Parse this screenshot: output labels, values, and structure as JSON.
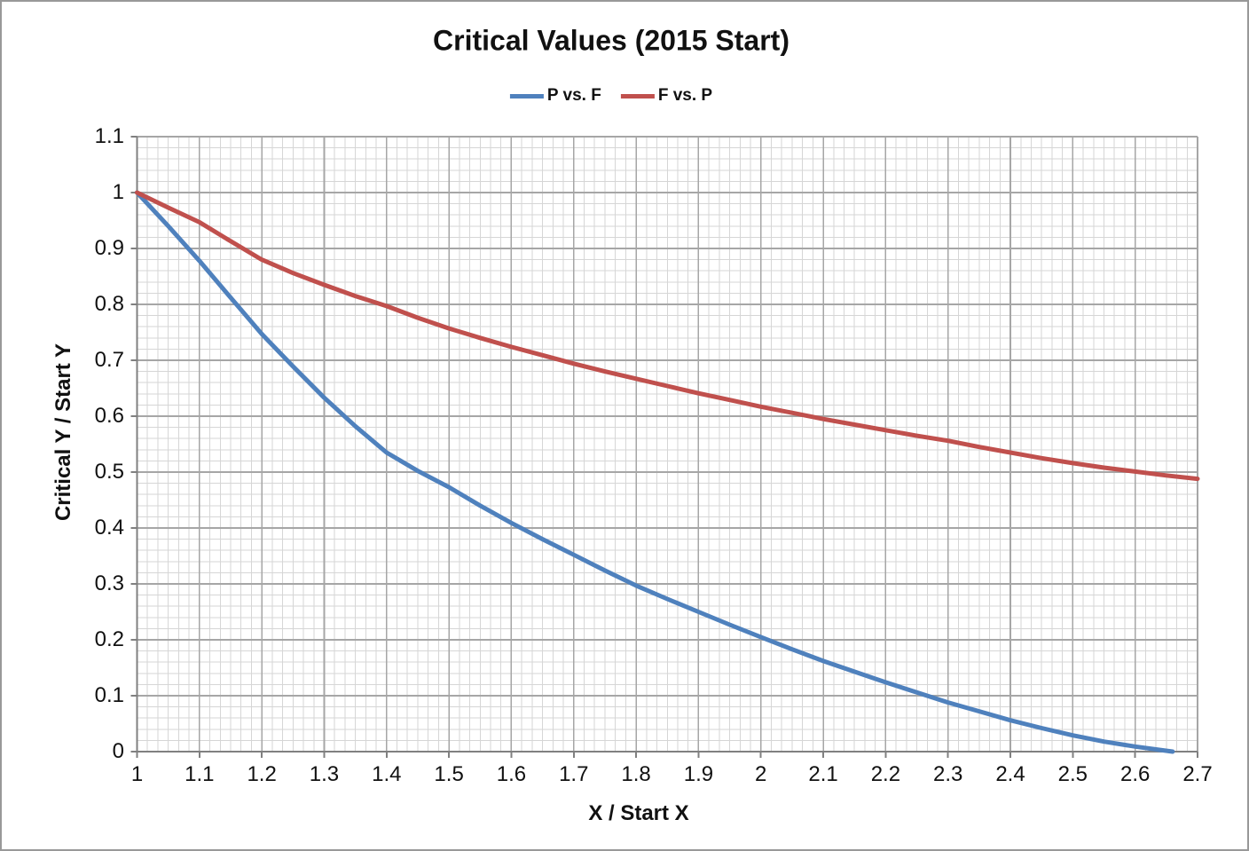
{
  "chart_data": {
    "type": "line",
    "title": "Critical Values (2015 Start)",
    "xlabel": "X / Start X",
    "ylabel": "Critical Y / Start Y",
    "xlim": [
      1.0,
      2.7
    ],
    "ylim": [
      0.0,
      1.1
    ],
    "x_ticks": [
      "1",
      "1.1",
      "1.2",
      "1.3",
      "1.4",
      "1.5",
      "1.6",
      "1.7",
      "1.8",
      "1.9",
      "2",
      "2.1",
      "2.2",
      "2.3",
      "2.4",
      "2.5",
      "2.6",
      "2.7"
    ],
    "y_ticks": [
      "0",
      "0.1",
      "0.2",
      "0.3",
      "0.4",
      "0.5",
      "0.6",
      "0.7",
      "0.8",
      "0.9",
      "1",
      "1.1"
    ],
    "x_minor_divisions_per_major": 6,
    "y_minor_divisions_per_major": 5,
    "grid": "major and minor gridlines on both axes",
    "legend_position": "top-center",
    "series": [
      {
        "name": "P vs. F",
        "color": "#4f81bd",
        "points": [
          [
            1,
            1
          ],
          [
            1.05,
            0.94
          ],
          [
            1.1,
            0.878
          ],
          [
            1.15,
            0.812
          ],
          [
            1.2,
            0.747
          ],
          [
            1.25,
            0.689
          ],
          [
            1.3,
            0.633
          ],
          [
            1.35,
            0.582
          ],
          [
            1.4,
            0.535
          ],
          [
            1.45,
            0.502
          ],
          [
            1.5,
            0.473
          ],
          [
            1.55,
            0.44
          ],
          [
            1.6,
            0.409
          ],
          [
            1.65,
            0.38
          ],
          [
            1.7,
            0.352
          ],
          [
            1.75,
            0.324
          ],
          [
            1.8,
            0.297
          ],
          [
            1.85,
            0.273
          ],
          [
            1.9,
            0.25
          ],
          [
            1.95,
            0.227
          ],
          [
            2,
            0.205
          ],
          [
            2.05,
            0.183
          ],
          [
            2.1,
            0.162
          ],
          [
            2.15,
            0.143
          ],
          [
            2.2,
            0.124
          ],
          [
            2.25,
            0.106
          ],
          [
            2.3,
            0.088
          ],
          [
            2.35,
            0.072
          ],
          [
            2.4,
            0.056
          ],
          [
            2.45,
            0.042
          ],
          [
            2.5,
            0.029
          ],
          [
            2.55,
            0.018
          ],
          [
            2.6,
            0.009
          ],
          [
            2.66,
            0
          ]
        ]
      },
      {
        "name": "F vs. P",
        "color": "#c0504d",
        "points": [
          [
            1,
            1
          ],
          [
            1.05,
            0.973
          ],
          [
            1.1,
            0.947
          ],
          [
            1.15,
            0.913
          ],
          [
            1.2,
            0.88
          ],
          [
            1.25,
            0.856
          ],
          [
            1.3,
            0.835
          ],
          [
            1.35,
            0.815
          ],
          [
            1.4,
            0.797
          ],
          [
            1.45,
            0.776
          ],
          [
            1.5,
            0.757
          ],
          [
            1.55,
            0.74
          ],
          [
            1.6,
            0.724
          ],
          [
            1.65,
            0.709
          ],
          [
            1.7,
            0.694
          ],
          [
            1.75,
            0.68
          ],
          [
            1.8,
            0.667
          ],
          [
            1.85,
            0.654
          ],
          [
            1.9,
            0.641
          ],
          [
            1.95,
            0.629
          ],
          [
            2,
            0.617
          ],
          [
            2.05,
            0.606
          ],
          [
            2.1,
            0.595
          ],
          [
            2.15,
            0.585
          ],
          [
            2.2,
            0.575
          ],
          [
            2.25,
            0.565
          ],
          [
            2.3,
            0.556
          ],
          [
            2.35,
            0.545
          ],
          [
            2.4,
            0.535
          ],
          [
            2.45,
            0.525
          ],
          [
            2.5,
            0.516
          ],
          [
            2.55,
            0.508
          ],
          [
            2.6,
            0.501
          ],
          [
            2.65,
            0.494
          ],
          [
            2.7,
            0.488
          ]
        ]
      }
    ]
  },
  "colors": {
    "series_blue": "#4f81bd",
    "series_red": "#c0504d",
    "major_grid": "#a6a6a6",
    "minor_grid": "#d6d6d6",
    "axis": "#808080",
    "frame_border": "#999999",
    "text": "#111111"
  }
}
